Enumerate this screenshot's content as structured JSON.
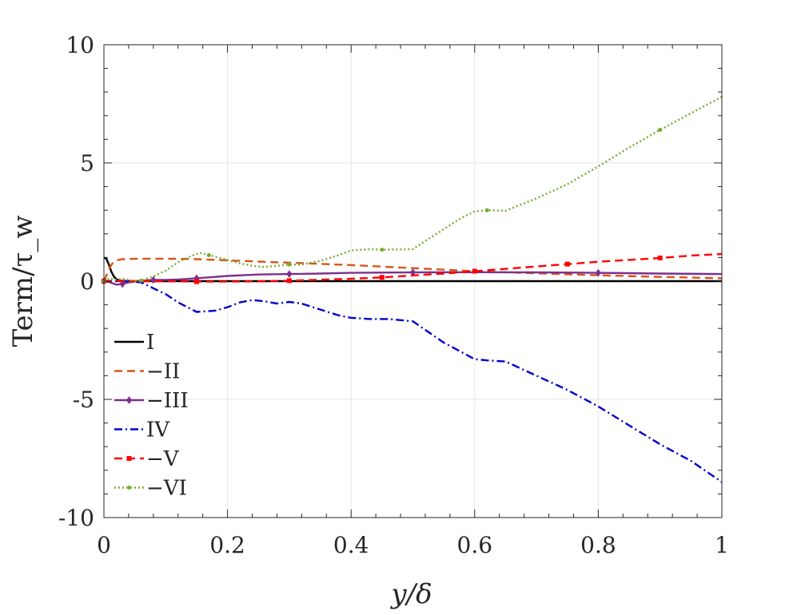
{
  "chart_data": {
    "type": "line",
    "xlabel": "y/δ",
    "ylabel": "Term/τ_w",
    "xlim": [
      0,
      1
    ],
    "ylim": [
      -10,
      10
    ],
    "x_ticks": [
      "0",
      "0.2",
      "0.4",
      "0.6",
      "0.8",
      "1"
    ],
    "y_ticks": [
      "10",
      "5",
      "0",
      "-5",
      "-10"
    ],
    "grid": true,
    "legend_position": "lower-left",
    "series": [
      {
        "name": "I",
        "color": "#000000",
        "style": "solid",
        "marker": "none",
        "x": [
          0,
          0.004,
          0.008,
          0.012,
          0.016,
          0.02,
          0.025,
          0.03,
          0.04,
          0.06,
          0.1,
          0.2,
          0.4,
          0.6,
          0.8,
          1.0
        ],
        "y": [
          1.0,
          0.95,
          0.7,
          0.4,
          0.2,
          0.08,
          0.03,
          0.01,
          0.0,
          0.0,
          0.0,
          0.0,
          0.0,
          0.0,
          0.0,
          0.0
        ]
      },
      {
        "name": "−II",
        "color": "#d95319",
        "style": "dashed",
        "marker": "none",
        "x": [
          0,
          0.005,
          0.01,
          0.015,
          0.02,
          0.03,
          0.05,
          0.08,
          0.1,
          0.15,
          0.2,
          0.3,
          0.4,
          0.5,
          0.6,
          0.7,
          0.8,
          0.9,
          1.0
        ],
        "y": [
          0.0,
          0.3,
          0.6,
          0.8,
          0.88,
          0.93,
          0.95,
          0.95,
          0.95,
          0.93,
          0.88,
          0.78,
          0.68,
          0.55,
          0.42,
          0.33,
          0.25,
          0.18,
          0.12
        ]
      },
      {
        "name": "−III",
        "color": "#7e2f8e",
        "style": "solid",
        "marker": "diamond",
        "x": [
          0,
          0.01,
          0.02,
          0.03,
          0.04,
          0.06,
          0.08,
          0.1,
          0.12,
          0.15,
          0.2,
          0.25,
          0.3,
          0.35,
          0.4,
          0.5,
          0.6,
          0.7,
          0.8,
          0.9,
          1.0
        ],
        "y": [
          0.0,
          -0.05,
          -0.15,
          -0.12,
          -0.05,
          0.02,
          0.05,
          0.05,
          0.07,
          0.12,
          0.22,
          0.28,
          0.3,
          0.32,
          0.35,
          0.37,
          0.38,
          0.37,
          0.35,
          0.32,
          0.3
        ]
      },
      {
        "name": "IV",
        "color": "#0000cd",
        "style": "dashdot",
        "marker": "none",
        "x": [
          0,
          0.02,
          0.04,
          0.06,
          0.08,
          0.1,
          0.12,
          0.15,
          0.18,
          0.2,
          0.22,
          0.24,
          0.26,
          0.28,
          0.3,
          0.32,
          0.35,
          0.38,
          0.4,
          0.43,
          0.46,
          0.5,
          0.55,
          0.6,
          0.62,
          0.65,
          0.7,
          0.75,
          0.8,
          0.85,
          0.9,
          0.95,
          1.0
        ],
        "y": [
          0.0,
          0.0,
          0.0,
          -0.05,
          -0.3,
          -0.55,
          -0.9,
          -1.3,
          -1.25,
          -1.1,
          -0.9,
          -0.8,
          -0.85,
          -0.95,
          -0.88,
          -0.95,
          -1.2,
          -1.45,
          -1.55,
          -1.6,
          -1.6,
          -1.7,
          -2.6,
          -3.3,
          -3.35,
          -3.4,
          -4.0,
          -4.6,
          -5.3,
          -6.1,
          -6.9,
          -7.6,
          -8.5
        ]
      },
      {
        "name": "−V",
        "color": "#ff0000",
        "style": "dashed",
        "marker": "square",
        "x": [
          0,
          0.05,
          0.1,
          0.15,
          0.2,
          0.25,
          0.3,
          0.35,
          0.4,
          0.45,
          0.5,
          0.55,
          0.6,
          0.65,
          0.7,
          0.75,
          0.8,
          0.85,
          0.9,
          0.95,
          1.0
        ],
        "y": [
          0.0,
          0.0,
          0.0,
          -0.02,
          -0.02,
          -0.01,
          0.02,
          0.06,
          0.1,
          0.16,
          0.24,
          0.32,
          0.42,
          0.52,
          0.62,
          0.72,
          0.82,
          0.9,
          0.98,
          1.08,
          1.15
        ]
      },
      {
        "name": "−VI",
        "color": "#77ac30",
        "style": "dotted",
        "marker": "dot",
        "x": [
          0,
          0.01,
          0.02,
          0.03,
          0.04,
          0.05,
          0.06,
          0.08,
          0.1,
          0.12,
          0.14,
          0.155,
          0.17,
          0.2,
          0.22,
          0.24,
          0.26,
          0.28,
          0.3,
          0.32,
          0.35,
          0.38,
          0.4,
          0.43,
          0.45,
          0.5,
          0.52,
          0.55,
          0.58,
          0.6,
          0.62,
          0.65,
          0.7,
          0.75,
          0.8,
          0.85,
          0.9,
          0.95,
          1.0
        ],
        "y": [
          0.0,
          0.12,
          0.05,
          0.1,
          0.05,
          0.0,
          0.02,
          0.2,
          0.45,
          0.8,
          1.05,
          1.2,
          1.1,
          0.9,
          0.75,
          0.65,
          0.6,
          0.65,
          0.7,
          0.7,
          0.85,
          1.1,
          1.3,
          1.35,
          1.33,
          1.35,
          1.7,
          2.2,
          2.7,
          2.95,
          3.0,
          2.98,
          3.5,
          4.1,
          4.85,
          5.65,
          6.4,
          7.1,
          7.8
        ]
      }
    ]
  }
}
